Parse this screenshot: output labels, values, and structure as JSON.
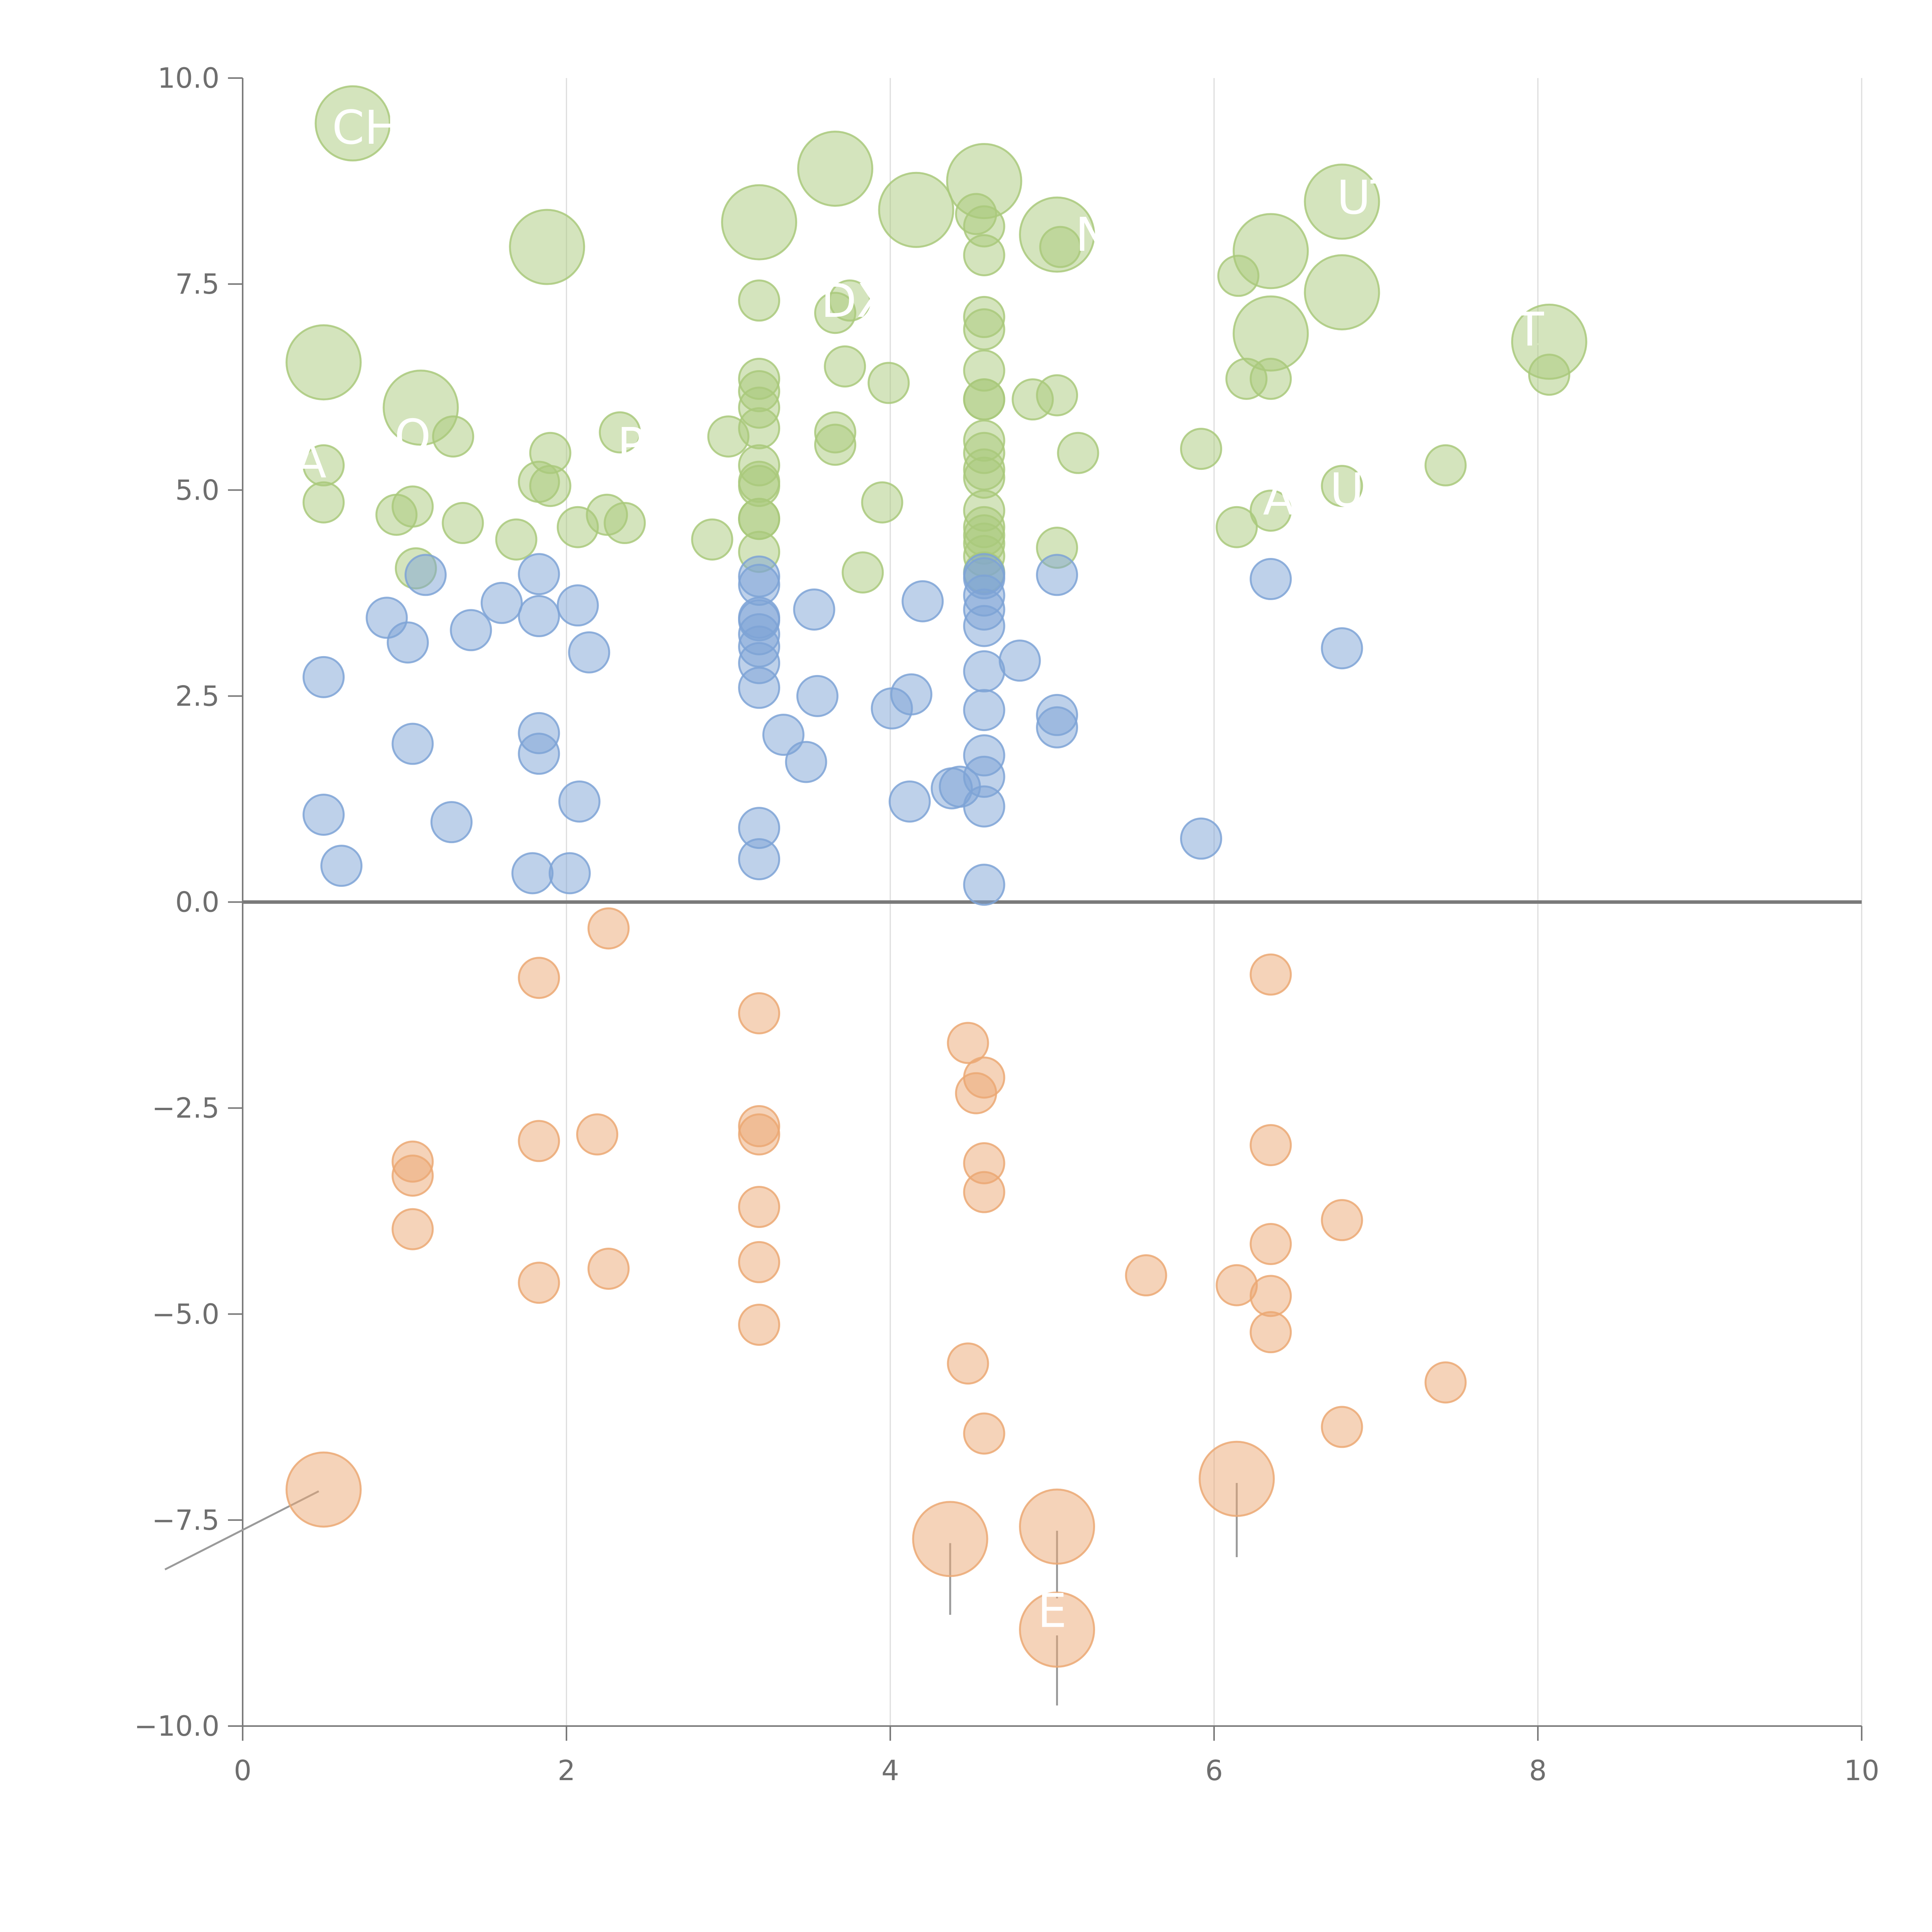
{
  "chart_data": {
    "type": "scatter",
    "title": "",
    "xlabel": "",
    "ylabel": "",
    "xlim": [
      0,
      10
    ],
    "ylim": [
      -10,
      10
    ],
    "x_ticks": [
      "0",
      "2",
      "4",
      "6",
      "8",
      "10"
    ],
    "x_tick_values": [
      0,
      2,
      4,
      6,
      8,
      10
    ],
    "y_ticks": [
      "10.0",
      "7.5",
      "5.0",
      "2.5",
      "0.0",
      "−2.5",
      "−5.0",
      "−7.5",
      "−10.0"
    ],
    "y_tick_values": [
      10,
      7.5,
      5,
      2.5,
      0,
      -2.5,
      -5,
      -7.5,
      -10
    ],
    "vertical_grid": true,
    "zero_line": true,
    "series": [
      {
        "name": "green",
        "color": "#a9c97b",
        "points": [
          {
            "x": 0.68,
            "y": 9.45,
            "s": "large"
          },
          {
            "x": 3.66,
            "y": 8.9,
            "s": "large"
          },
          {
            "x": 4.58,
            "y": 8.75,
            "s": "large"
          },
          {
            "x": 6.79,
            "y": 8.5,
            "s": "large"
          },
          {
            "x": 3.19,
            "y": 8.25,
            "s": "large"
          },
          {
            "x": 4.16,
            "y": 8.4,
            "s": "large"
          },
          {
            "x": 5.03,
            "y": 8.1,
            "s": "large"
          },
          {
            "x": 1.88,
            "y": 7.95,
            "s": "large"
          },
          {
            "x": 6.35,
            "y": 7.9,
            "s": "large"
          },
          {
            "x": 6.79,
            "y": 7.4,
            "s": "large"
          },
          {
            "x": 6.35,
            "y": 6.9,
            "s": "large"
          },
          {
            "x": 8.07,
            "y": 6.8,
            "s": "large"
          },
          {
            "x": 0.5,
            "y": 6.55,
            "s": "large"
          },
          {
            "x": 1.1,
            "y": 6.0,
            "s": "large"
          },
          {
            "x": 4.53,
            "y": 8.35,
            "s": "small"
          },
          {
            "x": 4.58,
            "y": 8.2,
            "s": "small"
          },
          {
            "x": 4.58,
            "y": 7.85,
            "s": "small"
          },
          {
            "x": 5.05,
            "y": 7.95,
            "s": "small"
          },
          {
            "x": 6.15,
            "y": 7.6,
            "s": "small"
          },
          {
            "x": 3.19,
            "y": 7.3,
            "s": "small"
          },
          {
            "x": 3.66,
            "y": 7.15,
            "s": "small"
          },
          {
            "x": 3.75,
            "y": 7.3,
            "s": "small"
          },
          {
            "x": 4.58,
            "y": 7.1,
            "s": "small"
          },
          {
            "x": 4.58,
            "y": 6.95,
            "s": "small"
          },
          {
            "x": 3.72,
            "y": 6.5,
            "s": "small"
          },
          {
            "x": 4.58,
            "y": 6.45,
            "s": "small"
          },
          {
            "x": 3.19,
            "y": 6.35,
            "s": "small"
          },
          {
            "x": 3.19,
            "y": 6.2,
            "s": "small"
          },
          {
            "x": 3.99,
            "y": 6.3,
            "s": "small"
          },
          {
            "x": 6.2,
            "y": 6.35,
            "s": "small"
          },
          {
            "x": 6.35,
            "y": 6.35,
            "s": "small"
          },
          {
            "x": 8.07,
            "y": 6.4,
            "s": "small"
          },
          {
            "x": 4.58,
            "y": 6.1,
            "s": "small"
          },
          {
            "x": 4.58,
            "y": 6.1,
            "s": "small"
          },
          {
            "x": 4.88,
            "y": 6.1,
            "s": "small"
          },
          {
            "x": 5.03,
            "y": 6.15,
            "s": "small"
          },
          {
            "x": 3.19,
            "y": 6.0,
            "s": "small"
          },
          {
            "x": 3.19,
            "y": 5.75,
            "s": "small"
          },
          {
            "x": 1.3,
            "y": 5.65,
            "s": "small"
          },
          {
            "x": 2.33,
            "y": 5.7,
            "s": "small"
          },
          {
            "x": 3.0,
            "y": 5.65,
            "s": "small"
          },
          {
            "x": 3.66,
            "y": 5.7,
            "s": "small"
          },
          {
            "x": 3.66,
            "y": 5.55,
            "s": "small"
          },
          {
            "x": 4.58,
            "y": 5.6,
            "s": "small"
          },
          {
            "x": 4.58,
            "y": 5.45,
            "s": "small"
          },
          {
            "x": 5.16,
            "y": 5.45,
            "s": "small"
          },
          {
            "x": 5.92,
            "y": 5.5,
            "s": "small"
          },
          {
            "x": 1.9,
            "y": 5.45,
            "s": "small"
          },
          {
            "x": 0.5,
            "y": 5.3,
            "s": "small"
          },
          {
            "x": 3.19,
            "y": 5.3,
            "s": "small"
          },
          {
            "x": 4.58,
            "y": 5.25,
            "s": "small"
          },
          {
            "x": 4.58,
            "y": 5.15,
            "s": "small"
          },
          {
            "x": 7.43,
            "y": 5.3,
            "s": "small"
          },
          {
            "x": 1.83,
            "y": 5.1,
            "s": "small"
          },
          {
            "x": 1.9,
            "y": 5.05,
            "s": "small"
          },
          {
            "x": 3.19,
            "y": 5.05,
            "s": "small"
          },
          {
            "x": 3.19,
            "y": 5.1,
            "s": "small"
          },
          {
            "x": 6.79,
            "y": 5.05,
            "s": "small"
          },
          {
            "x": 0.5,
            "y": 4.85,
            "s": "small"
          },
          {
            "x": 1.05,
            "y": 4.8,
            "s": "small"
          },
          {
            "x": 0.95,
            "y": 4.7,
            "s": "small"
          },
          {
            "x": 3.95,
            "y": 4.85,
            "s": "small"
          },
          {
            "x": 6.35,
            "y": 4.75,
            "s": "small"
          },
          {
            "x": 4.58,
            "y": 4.75,
            "s": "small"
          },
          {
            "x": 3.19,
            "y": 4.65,
            "s": "small"
          },
          {
            "x": 3.19,
            "y": 4.65,
            "s": "small"
          },
          {
            "x": 1.36,
            "y": 4.6,
            "s": "small"
          },
          {
            "x": 2.25,
            "y": 4.7,
            "s": "small"
          },
          {
            "x": 2.36,
            "y": 4.6,
            "s": "small"
          },
          {
            "x": 2.07,
            "y": 4.55,
            "s": "small"
          },
          {
            "x": 4.58,
            "y": 4.55,
            "s": "small"
          },
          {
            "x": 4.58,
            "y": 4.45,
            "s": "small"
          },
          {
            "x": 6.14,
            "y": 4.55,
            "s": "small"
          },
          {
            "x": 1.69,
            "y": 4.4,
            "s": "small"
          },
          {
            "x": 2.9,
            "y": 4.4,
            "s": "small"
          },
          {
            "x": 4.58,
            "y": 4.35,
            "s": "small"
          },
          {
            "x": 5.03,
            "y": 4.3,
            "s": "small"
          },
          {
            "x": 3.19,
            "y": 4.25,
            "s": "small"
          },
          {
            "x": 4.58,
            "y": 4.2,
            "s": "small"
          },
          {
            "x": 1.07,
            "y": 4.05,
            "s": "small"
          },
          {
            "x": 3.83,
            "y": 4.0,
            "s": "small"
          },
          {
            "x": 4.58,
            "y": 4.0,
            "s": "small"
          }
        ]
      },
      {
        "name": "blue",
        "color": "#7ea3d6",
        "points": [
          {
            "x": 1.13,
            "y": 3.97
          },
          {
            "x": 1.83,
            "y": 3.98
          },
          {
            "x": 3.19,
            "y": 3.95
          },
          {
            "x": 4.58,
            "y": 3.98
          },
          {
            "x": 4.58,
            "y": 3.93
          },
          {
            "x": 5.03,
            "y": 3.97
          },
          {
            "x": 6.35,
            "y": 3.92
          },
          {
            "x": 3.19,
            "y": 3.85
          },
          {
            "x": 4.58,
            "y": 3.72
          },
          {
            "x": 1.6,
            "y": 3.63
          },
          {
            "x": 2.07,
            "y": 3.6
          },
          {
            "x": 4.2,
            "y": 3.65
          },
          {
            "x": 0.89,
            "y": 3.45
          },
          {
            "x": 1.83,
            "y": 3.47
          },
          {
            "x": 3.19,
            "y": 3.45
          },
          {
            "x": 3.19,
            "y": 3.42
          },
          {
            "x": 3.53,
            "y": 3.55
          },
          {
            "x": 4.58,
            "y": 3.55
          },
          {
            "x": 4.58,
            "y": 3.35
          },
          {
            "x": 1.41,
            "y": 3.3
          },
          {
            "x": 3.19,
            "y": 3.25
          },
          {
            "x": 1.02,
            "y": 3.15
          },
          {
            "x": 3.19,
            "y": 3.1
          },
          {
            "x": 6.79,
            "y": 3.08
          },
          {
            "x": 2.14,
            "y": 3.03
          },
          {
            "x": 3.19,
            "y": 2.9
          },
          {
            "x": 4.8,
            "y": 2.93
          },
          {
            "x": 4.58,
            "y": 2.8
          },
          {
            "x": 0.5,
            "y": 2.73
          },
          {
            "x": 3.19,
            "y": 2.6
          },
          {
            "x": 3.55,
            "y": 2.5
          },
          {
            "x": 4.13,
            "y": 2.52
          },
          {
            "x": 4.01,
            "y": 2.35
          },
          {
            "x": 4.58,
            "y": 2.33
          },
          {
            "x": 5.03,
            "y": 2.27
          },
          {
            "x": 5.03,
            "y": 2.12
          },
          {
            "x": 1.83,
            "y": 2.05
          },
          {
            "x": 3.34,
            "y": 2.03
          },
          {
            "x": 1.05,
            "y": 1.92
          },
          {
            "x": 1.83,
            "y": 1.8
          },
          {
            "x": 4.58,
            "y": 1.78
          },
          {
            "x": 3.48,
            "y": 1.7
          },
          {
            "x": 4.58,
            "y": 1.52
          },
          {
            "x": 4.43,
            "y": 1.4
          },
          {
            "x": 4.38,
            "y": 1.38
          },
          {
            "x": 2.08,
            "y": 1.22
          },
          {
            "x": 4.12,
            "y": 1.22
          },
          {
            "x": 4.58,
            "y": 1.16
          },
          {
            "x": 0.5,
            "y": 1.06
          },
          {
            "x": 1.29,
            "y": 0.97
          },
          {
            "x": 3.19,
            "y": 0.9
          },
          {
            "x": 5.92,
            "y": 0.77
          },
          {
            "x": 3.19,
            "y": 0.52
          },
          {
            "x": 0.61,
            "y": 0.44
          },
          {
            "x": 1.79,
            "y": 0.35
          },
          {
            "x": 2.02,
            "y": 0.35
          },
          {
            "x": 4.58,
            "y": 0.21
          }
        ]
      },
      {
        "name": "orange",
        "color": "#eba873",
        "points": [
          {
            "x": 2.26,
            "y": -0.32,
            "s": "small"
          },
          {
            "x": 6.35,
            "y": -0.88,
            "s": "small"
          },
          {
            "x": 1.83,
            "y": -0.92,
            "s": "small"
          },
          {
            "x": 3.19,
            "y": -1.35,
            "s": "small"
          },
          {
            "x": 4.48,
            "y": -1.71,
            "s": "small"
          },
          {
            "x": 4.58,
            "y": -2.13,
            "s": "small"
          },
          {
            "x": 4.53,
            "y": -2.32,
            "s": "small"
          },
          {
            "x": 3.19,
            "y": -2.72,
            "s": "small"
          },
          {
            "x": 3.19,
            "y": -2.82,
            "s": "small"
          },
          {
            "x": 2.19,
            "y": -2.82,
            "s": "small"
          },
          {
            "x": 1.83,
            "y": -2.9,
            "s": "small"
          },
          {
            "x": 6.35,
            "y": -2.95,
            "s": "small"
          },
          {
            "x": 1.05,
            "y": -3.15,
            "s": "small"
          },
          {
            "x": 4.58,
            "y": -3.17,
            "s": "small"
          },
          {
            "x": 1.05,
            "y": -3.32,
            "s": "small"
          },
          {
            "x": 4.58,
            "y": -3.52,
            "s": "small"
          },
          {
            "x": 3.19,
            "y": -3.7,
            "s": "small"
          },
          {
            "x": 6.79,
            "y": -3.86,
            "s": "small"
          },
          {
            "x": 1.05,
            "y": -3.97,
            "s": "small"
          },
          {
            "x": 6.35,
            "y": -4.15,
            "s": "small"
          },
          {
            "x": 3.19,
            "y": -4.37,
            "s": "small"
          },
          {
            "x": 2.26,
            "y": -4.45,
            "s": "small"
          },
          {
            "x": 5.58,
            "y": -4.53,
            "s": "small"
          },
          {
            "x": 1.83,
            "y": -4.62,
            "s": "small"
          },
          {
            "x": 6.14,
            "y": -4.65,
            "s": "small"
          },
          {
            "x": 6.35,
            "y": -4.78,
            "s": "small"
          },
          {
            "x": 3.19,
            "y": -5.13,
            "s": "small"
          },
          {
            "x": 6.35,
            "y": -5.22,
            "s": "small"
          },
          {
            "x": 4.48,
            "y": -5.6,
            "s": "small"
          },
          {
            "x": 7.43,
            "y": -5.83,
            "s": "small"
          },
          {
            "x": 6.79,
            "y": -6.37,
            "s": "small"
          },
          {
            "x": 4.58,
            "y": -6.45,
            "s": "small"
          },
          {
            "x": 0.5,
            "y": -7.13,
            "s": "large"
          },
          {
            "x": 6.14,
            "y": -7.0,
            "s": "large"
          },
          {
            "x": 5.03,
            "y": -7.58,
            "s": "large"
          },
          {
            "x": 4.37,
            "y": -7.73,
            "s": "large"
          },
          {
            "x": 5.03,
            "y": -8.83,
            "s": "large"
          }
        ]
      }
    ],
    "labels": [
      {
        "text": "CHE",
        "x": 0.85,
        "y": 9.4
      },
      {
        "text": "DX",
        "x": 3.78,
        "y": 7.3
      },
      {
        "text": "N",
        "x": 5.25,
        "y": 8.1
      },
      {
        "text": "UT",
        "x": 6.95,
        "y": 8.55
      },
      {
        "text": "T",
        "x": 7.95,
        "y": 6.95
      },
      {
        "text": "A",
        "x": 0.42,
        "y": 5.35
      },
      {
        "text": "O",
        "x": 1.05,
        "y": 5.65
      },
      {
        "text": "P",
        "x": 2.4,
        "y": 5.55
      },
      {
        "text": "A",
        "x": 6.4,
        "y": 4.9
      },
      {
        "text": "U",
        "x": 6.82,
        "y": 5.0
      },
      {
        "text": "E",
        "x": 5.0,
        "y": -8.6
      }
    ],
    "leader_lines": [
      {
        "from": [
          0.68,
          9.45
        ],
        "to": [
          0.7,
          9.2
        ]
      },
      {
        "from": [
          3.66,
          8.9
        ],
        "to": [
          3.6,
          8.55
        ]
      },
      {
        "from": [
          4.58,
          8.75
        ],
        "to": [
          4.5,
          8.95
        ]
      },
      {
        "from": [
          3.19,
          8.25
        ],
        "to": [
          3.12,
          7.95
        ]
      },
      {
        "from": [
          4.16,
          8.4
        ],
        "to": [
          4.25,
          8.1
        ]
      },
      {
        "from": [
          1.88,
          7.95
        ],
        "to": [
          1.82,
          7.65
        ]
      },
      {
        "from": [
          6.35,
          7.9
        ],
        "to": [
          6.15,
          8.0
        ]
      },
      {
        "from": [
          6.79,
          7.4
        ],
        "to": [
          7.05,
          7.4
        ]
      },
      {
        "from": [
          6.35,
          6.9
        ],
        "to": [
          6.25,
          6.65
        ]
      },
      {
        "from": [
          8.07,
          6.8
        ],
        "to": [
          7.95,
          6.75
        ]
      },
      {
        "from": [
          0.5,
          6.55
        ],
        "to": [
          0.6,
          6.35
        ]
      },
      {
        "from": [
          1.1,
          6.0
        ],
        "to": [
          1.25,
          6.2
        ]
      },
      {
        "from": [
          4.58,
          7.1
        ],
        "to": [
          4.65,
          6.65
        ]
      },
      {
        "from": [
          4.88,
          6.1
        ],
        "to": [
          4.8,
          6.3
        ]
      },
      {
        "from": [
          0.47,
          -7.15
        ],
        "to": [
          -0.48,
          -8.1
        ]
      },
      {
        "from": [
          6.14,
          -7.05
        ],
        "to": [
          6.14,
          -7.95
        ]
      },
      {
        "from": [
          4.37,
          -7.78
        ],
        "to": [
          4.37,
          -8.65
        ]
      },
      {
        "from": [
          5.03,
          -7.63
        ],
        "to": [
          5.03,
          -8.45
        ]
      },
      {
        "from": [
          5.03,
          -8.9
        ],
        "to": [
          5.03,
          -9.75
        ]
      }
    ]
  }
}
